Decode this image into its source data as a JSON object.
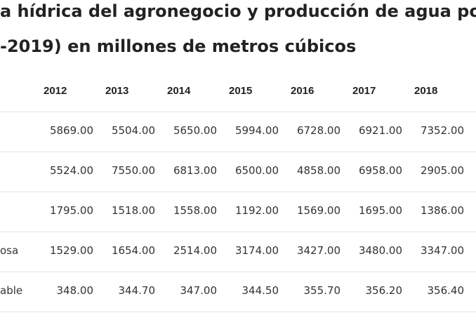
{
  "header": {
    "title": [
      "a hídrica del agronegocio y producción de agua pot",
      "-2019) en millones de metros cúbicos"
    ]
  },
  "table": {
    "columns": [
      "2012",
      "2013",
      "2014",
      "2015",
      "2016",
      "2017",
      "2018"
    ],
    "rows": [
      {
        "cells": [
          "5869.00",
          "5504.00",
          "5650.00",
          "5994.00",
          "6728.00",
          "6921.00",
          "7352.00"
        ]
      },
      {
        "cells": [
          "5524.00",
          "7550.00",
          "6813.00",
          "6500.00",
          "4858.00",
          "6958.00",
          "2905.00"
        ]
      },
      {
        "cells": [
          "1795.00",
          "1518.00",
          "1558.00",
          "1192.00",
          "1569.00",
          "1695.00",
          "1386.00"
        ]
      },
      {
        "label": "osa",
        "cells": [
          "1529.00",
          "1654.00",
          "2514.00",
          "3174.00",
          "3427.00",
          "3480.00",
          "3347.00"
        ]
      },
      {
        "label": "able",
        "cells": [
          "348.00",
          "344.70",
          "347.00",
          "344.50",
          "355.70",
          "356.20",
          "356.40"
        ]
      }
    ]
  }
}
